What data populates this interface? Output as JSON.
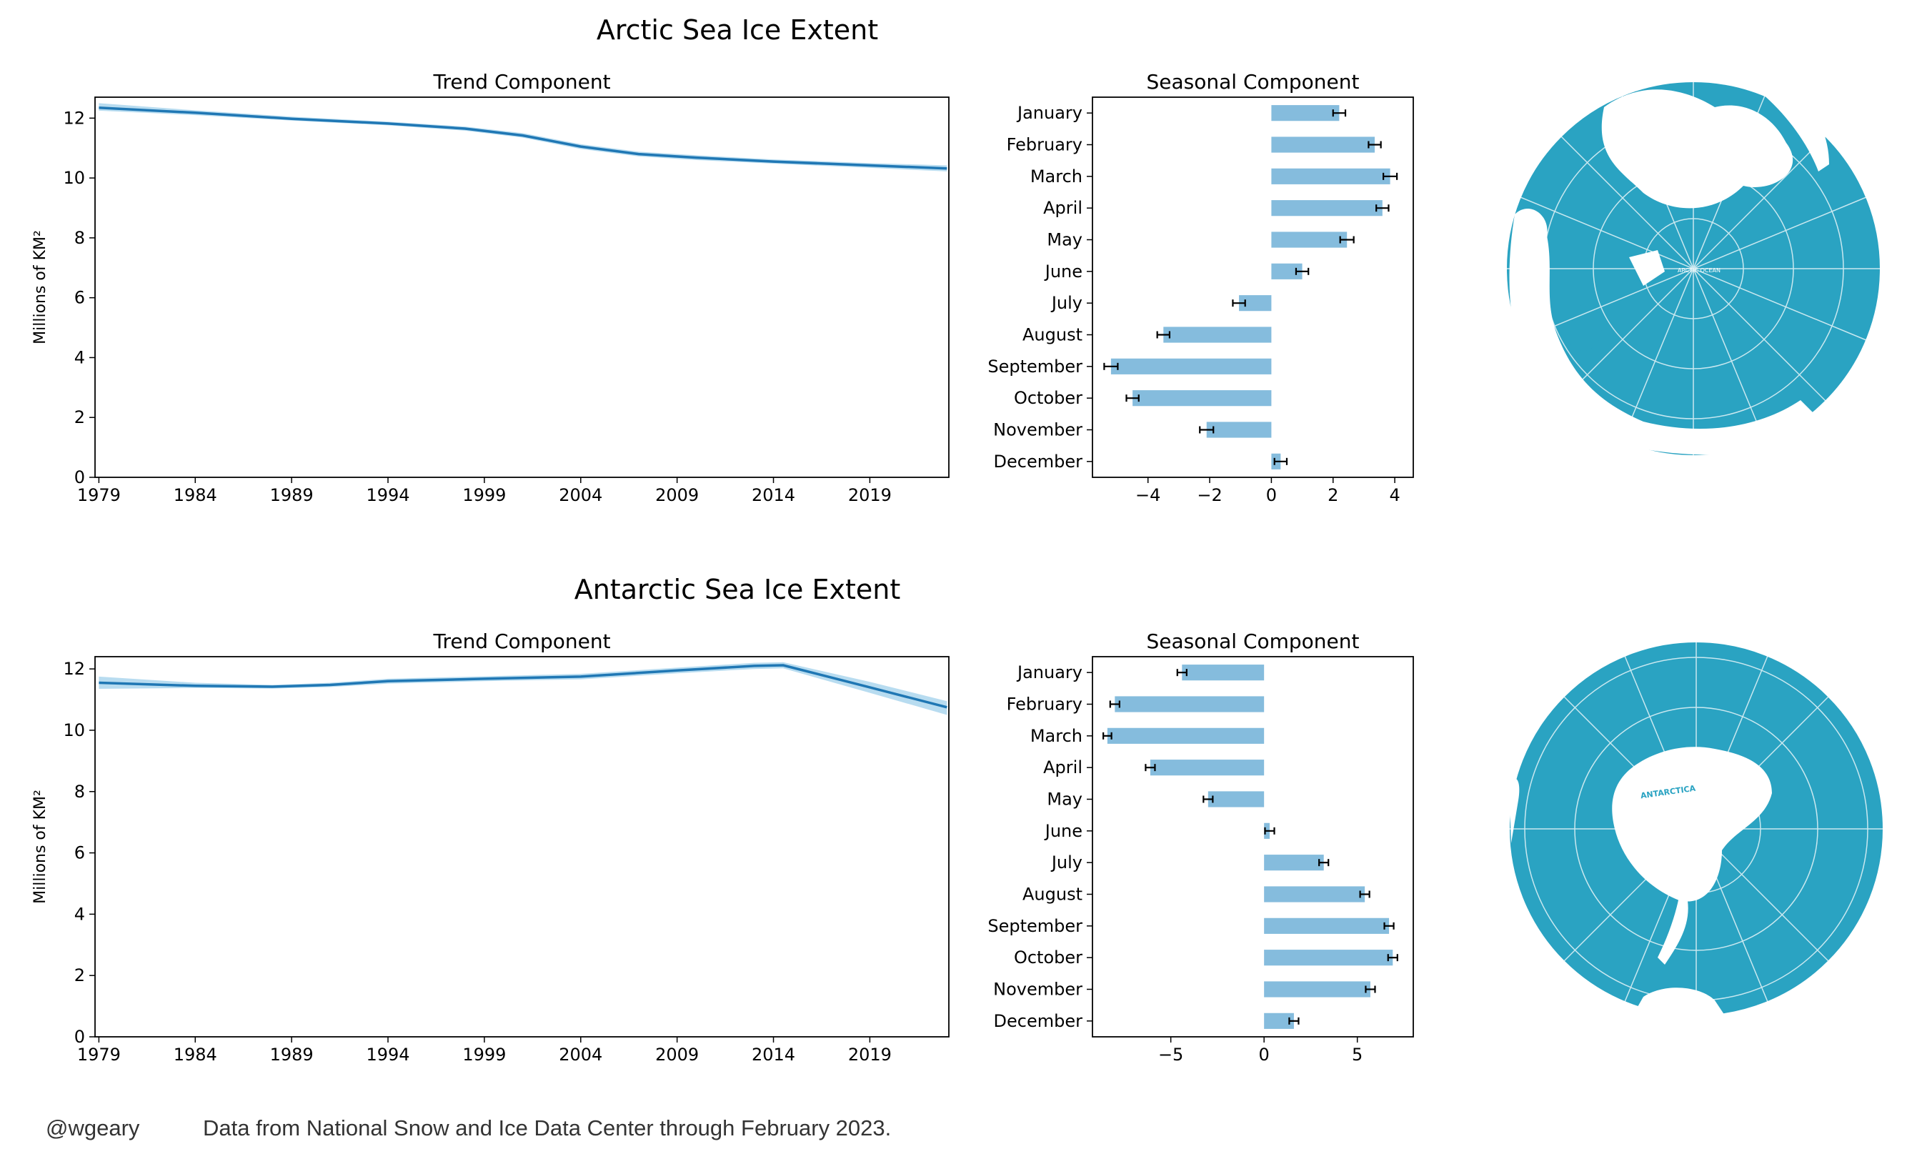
{
  "colors": {
    "trend_line": "#1f77b4",
    "trend_band": "#a6d3ec",
    "bar_fill": "#85bcdd",
    "ocean": "#2aa3c2",
    "land": "#ffffff",
    "errorbar": "#000000"
  },
  "sections": [
    {
      "title": "Arctic Sea Ice Extent",
      "trend": {
        "title": "Trend Component",
        "ylabel": "Millions of KM²",
        "xticks": [
          "1979",
          "1984",
          "1989",
          "1994",
          "1999",
          "2004",
          "2009",
          "2014",
          "2019"
        ],
        "yticks": [
          "0",
          "2",
          "4",
          "6",
          "8",
          "10",
          "12"
        ]
      },
      "seasonal": {
        "title": "Seasonal Component",
        "months": [
          "January",
          "February",
          "March",
          "April",
          "May",
          "June",
          "July",
          "August",
          "September",
          "October",
          "November",
          "December"
        ],
        "xticks": [
          "−4",
          "−2",
          "0",
          "2",
          "4"
        ]
      },
      "globe": {
        "icon": "arctic-globe-icon",
        "label": "ARCTIC OCEAN"
      }
    },
    {
      "title": "Antarctic Sea Ice Extent",
      "trend": {
        "title": "Trend Component",
        "ylabel": "Millions of KM²",
        "xticks": [
          "1979",
          "1984",
          "1989",
          "1994",
          "1999",
          "2004",
          "2009",
          "2014",
          "2019"
        ],
        "yticks": [
          "0",
          "2",
          "4",
          "6",
          "8",
          "10",
          "12"
        ]
      },
      "seasonal": {
        "title": "Seasonal Component",
        "months": [
          "January",
          "February",
          "March",
          "April",
          "May",
          "June",
          "July",
          "August",
          "September",
          "October",
          "November",
          "December"
        ],
        "xticks": [
          "−5",
          "0",
          "5"
        ]
      },
      "globe": {
        "icon": "antarctic-globe-icon",
        "label": "ANTARCTICA"
      }
    }
  ],
  "footer": {
    "handle": "@wgeary",
    "source": "Data from National Snow and Ice Data Center through February 2023."
  },
  "chart_data": [
    {
      "type": "line",
      "title": "Trend Component",
      "section": "Arctic Sea Ice Extent",
      "ylabel": "Millions of KM²",
      "xlim": [
        1978.8,
        2023.1
      ],
      "ylim": [
        0,
        12.7
      ],
      "x": [
        1979,
        1984,
        1989,
        1994,
        1998,
        2001,
        2004,
        2007,
        2010,
        2014,
        2019,
        2023
      ],
      "series": [
        {
          "values": [
            12.35,
            12.18,
            11.98,
            11.82,
            11.65,
            11.42,
            11.05,
            10.8,
            10.68,
            10.55,
            10.42,
            10.32
          ],
          "band_lower": [
            12.25,
            12.1,
            11.92,
            11.76,
            11.58,
            11.35,
            10.97,
            10.72,
            10.6,
            10.48,
            10.34,
            10.22
          ],
          "band_upper": [
            12.5,
            12.26,
            12.05,
            11.88,
            11.72,
            11.5,
            11.13,
            10.88,
            10.76,
            10.62,
            10.5,
            10.42
          ]
        }
      ]
    },
    {
      "type": "bar",
      "orientation": "horizontal",
      "title": "Seasonal Component",
      "section": "Arctic Sea Ice Extent",
      "categories": [
        "January",
        "February",
        "March",
        "April",
        "May",
        "June",
        "July",
        "August",
        "September",
        "October",
        "November",
        "December"
      ],
      "values": [
        2.2,
        3.35,
        3.85,
        3.6,
        2.45,
        1.0,
        -1.05,
        -3.5,
        -5.2,
        -4.5,
        -2.1,
        0.3
      ],
      "errors": [
        0.2,
        0.2,
        0.22,
        0.2,
        0.22,
        0.2,
        0.2,
        0.2,
        0.22,
        0.2,
        0.22,
        0.2
      ],
      "xlim": [
        -5.8,
        4.6
      ]
    },
    {
      "type": "line",
      "title": "Trend Component",
      "section": "Antarctic Sea Ice Extent",
      "ylabel": "Millions of KM²",
      "xlim": [
        1978.8,
        2023.1
      ],
      "ylim": [
        0,
        12.4
      ],
      "x": [
        1979,
        1984,
        1988,
        1991,
        1994,
        1999,
        2004,
        2009,
        2013,
        2014.5,
        2019,
        2023
      ],
      "series": [
        {
          "values": [
            11.55,
            11.45,
            11.42,
            11.48,
            11.6,
            11.68,
            11.75,
            11.95,
            12.1,
            12.12,
            11.4,
            10.75
          ],
          "band_lower": [
            11.35,
            11.38,
            11.36,
            11.41,
            11.52,
            11.6,
            11.66,
            11.86,
            12.0,
            12.02,
            11.22,
            10.5
          ],
          "band_upper": [
            11.75,
            11.55,
            11.48,
            11.55,
            11.68,
            11.76,
            11.84,
            12.04,
            12.2,
            12.22,
            11.58,
            10.95
          ]
        }
      ]
    },
    {
      "type": "bar",
      "orientation": "horizontal",
      "title": "Seasonal Component",
      "section": "Antarctic Sea Ice Extent",
      "categories": [
        "January",
        "February",
        "March",
        "April",
        "May",
        "June",
        "July",
        "August",
        "September",
        "October",
        "November",
        "December"
      ],
      "values": [
        -4.4,
        -8.0,
        -8.4,
        -6.1,
        -3.0,
        0.3,
        3.2,
        5.4,
        6.7,
        6.9,
        5.7,
        1.6
      ],
      "errors": [
        0.25,
        0.25,
        0.22,
        0.25,
        0.25,
        0.25,
        0.25,
        0.25,
        0.25,
        0.25,
        0.25,
        0.25
      ],
      "xlim": [
        -9.2,
        8.0
      ]
    }
  ]
}
